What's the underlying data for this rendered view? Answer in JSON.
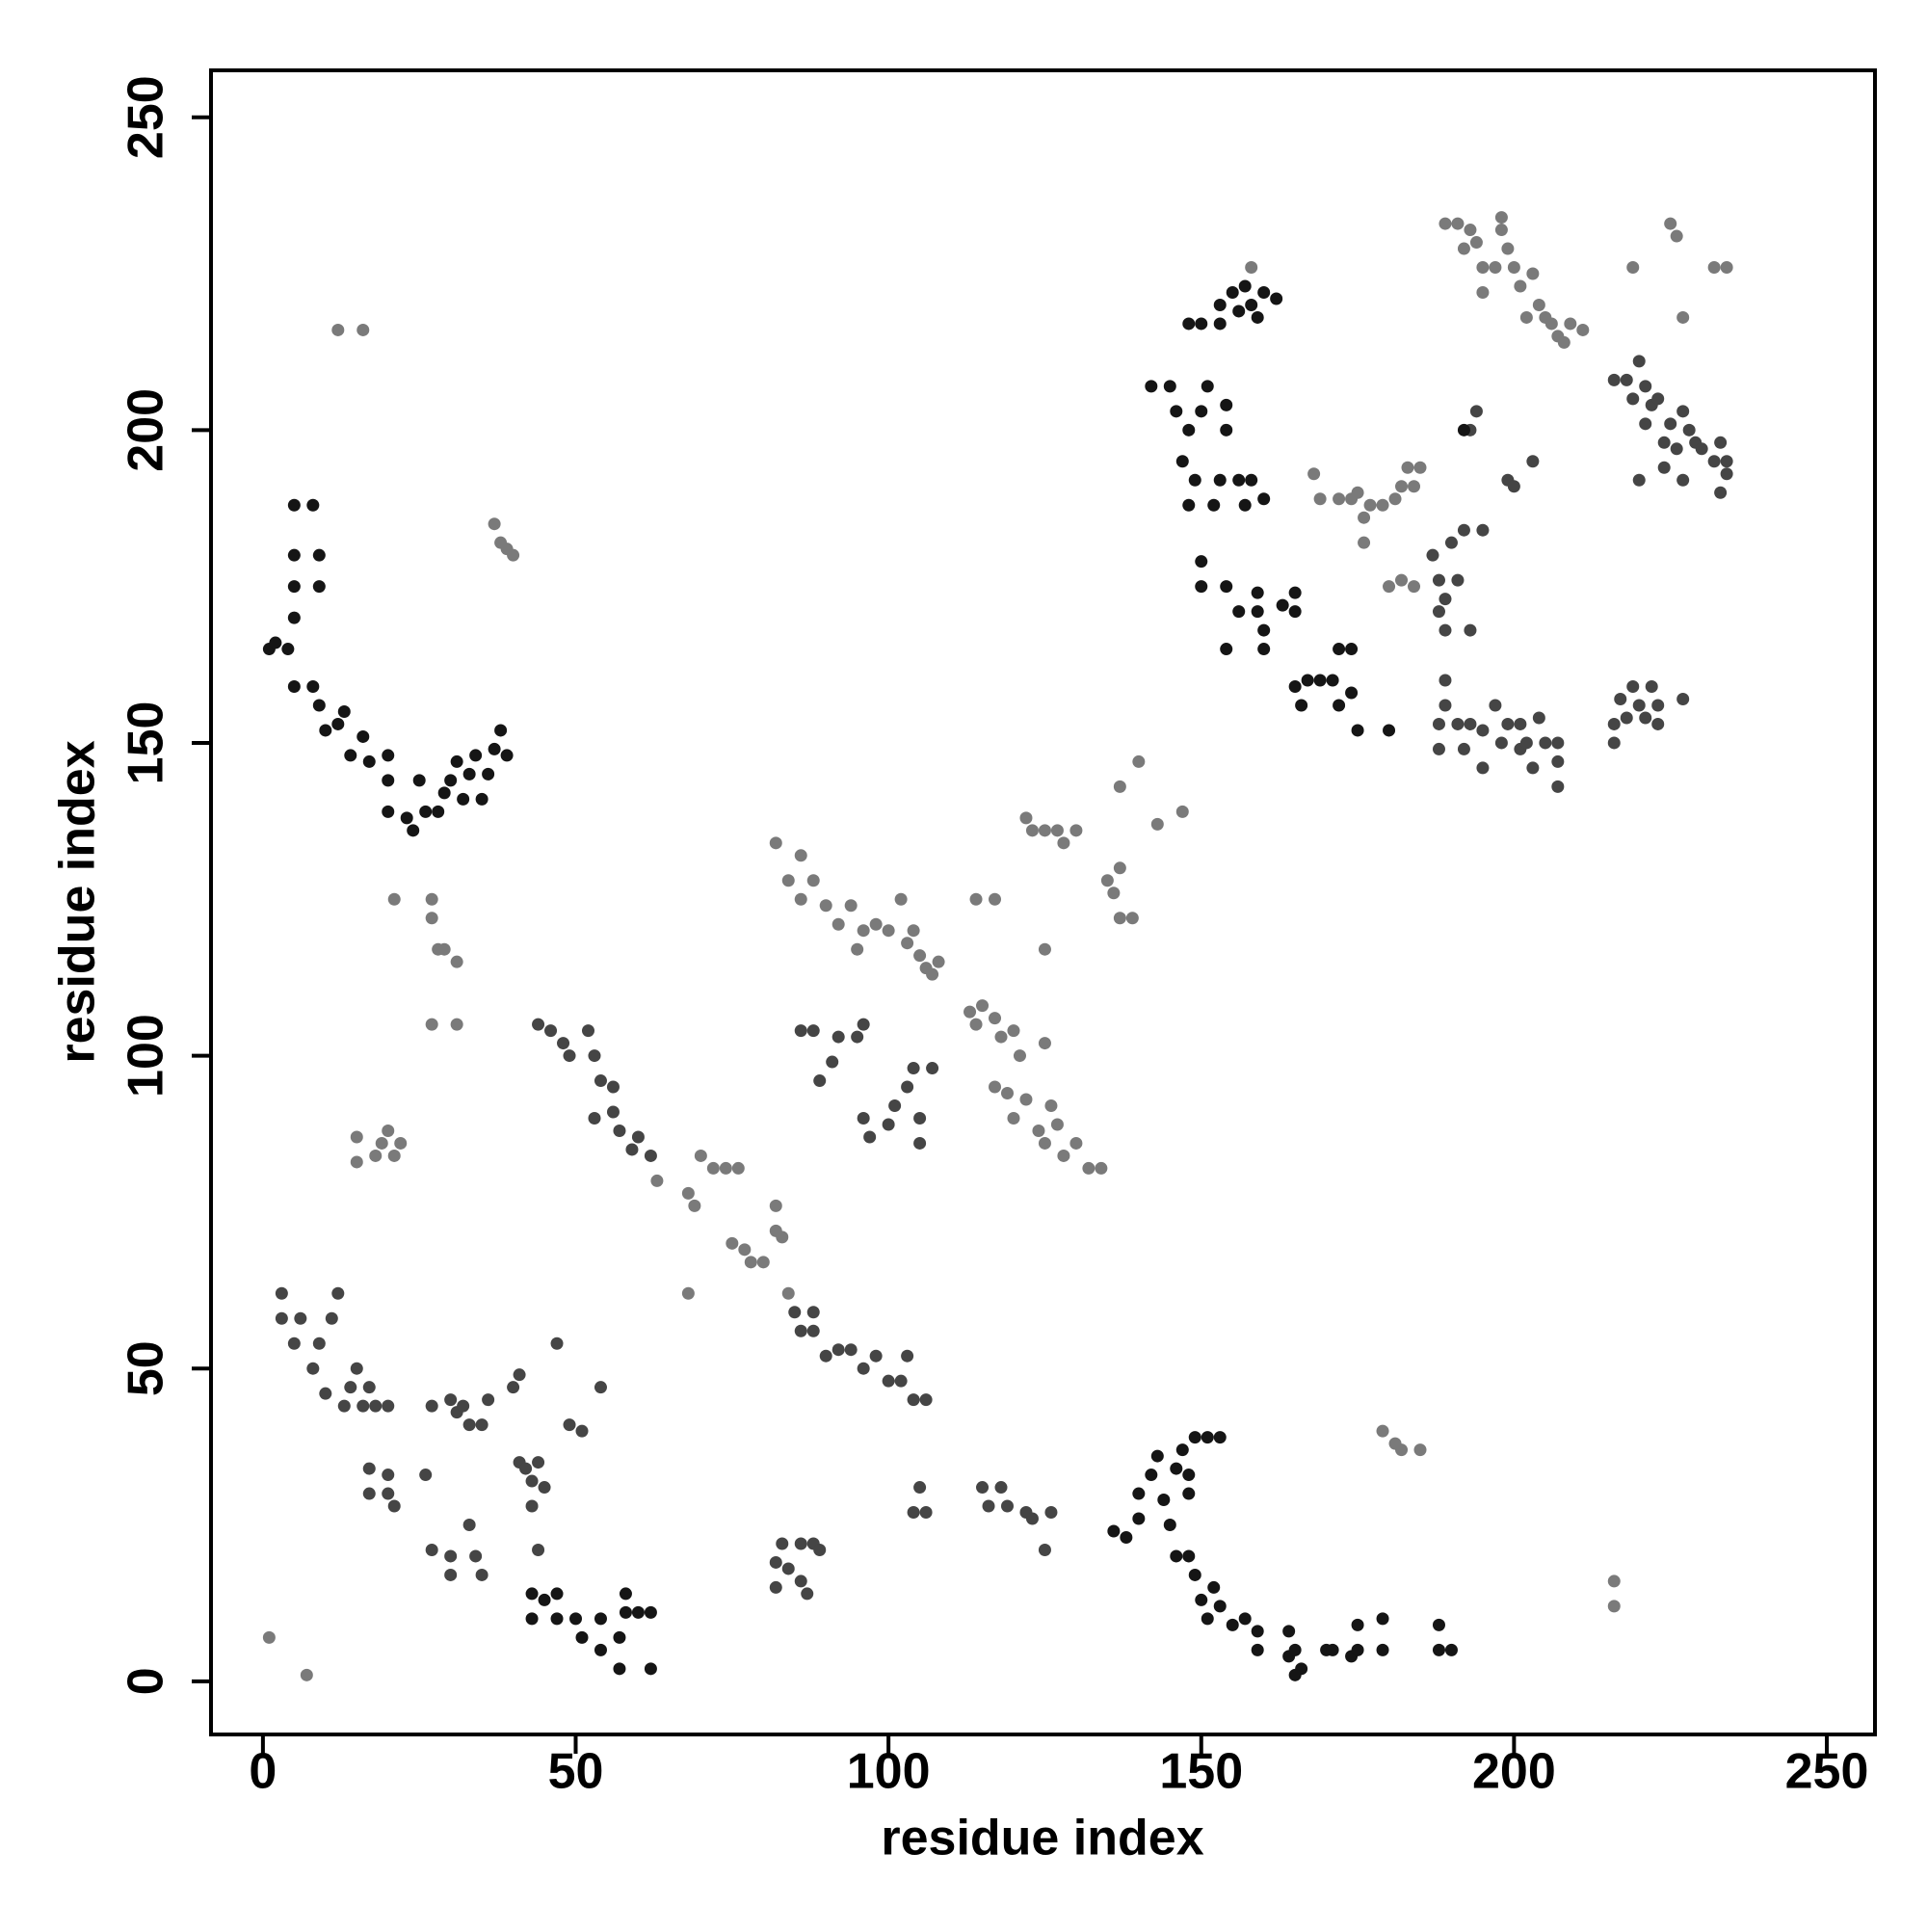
{
  "chart_data": {
    "type": "scatter",
    "xlabel": "residue index",
    "ylabel": "residue index",
    "xlim": [
      -8.3,
      257.7
    ],
    "ylim": [
      -8.5,
      257.5
    ],
    "xticks": [
      0,
      50,
      100,
      150,
      200,
      250
    ],
    "yticks": [
      0,
      50,
      100,
      150,
      200,
      250
    ],
    "series": [
      {
        "color": "#7a7a7a",
        "x": [
          37,
          38,
          39,
          40,
          12,
          16,
          21,
          27,
          27,
          28,
          29,
          31,
          27,
          31,
          15,
          15,
          18,
          19,
          20,
          21,
          22,
          82,
          84,
          86,
          86,
          88,
          90,
          92,
          94,
          96,
          95,
          98,
          100,
          102,
          103,
          104,
          105,
          106,
          107,
          108,
          113,
          114,
          115,
          117,
          118,
          120,
          121,
          117,
          119,
          120,
          122,
          124,
          125,
          126,
          127,
          128,
          130,
          132,
          134,
          125,
          117,
          125,
          122,
          123,
          125,
          127,
          128,
          130,
          135,
          136,
          137,
          137,
          137,
          139,
          140,
          143,
          147,
          114,
          179,
          181,
          182,
          185,
          216,
          216,
          189,
          191,
          192,
          193,
          194,
          195,
          195,
          197,
          198,
          199,
          198,
          200,
          201,
          202,
          203,
          204,
          205,
          206,
          207,
          208,
          209,
          211,
          219,
          225,
          226,
          227,
          232,
          234,
          168,
          169,
          172,
          174,
          175,
          176,
          176,
          177,
          179,
          181,
          182,
          183,
          184,
          185,
          180,
          182,
          184,
          63,
          68,
          68,
          69,
          70,
          72,
          74,
          76,
          75,
          77,
          78,
          80,
          82,
          82,
          83,
          84,
          1,
          7,
          158
        ],
        "values": [
          185,
          182,
          181,
          180,
          216,
          216,
          125,
          125,
          122,
          117,
          117,
          115,
          105,
          105,
          87,
          83,
          84,
          86,
          88,
          84,
          86,
          134,
          128,
          132,
          125,
          128,
          124,
          121,
          124,
          120,
          117,
          121,
          120,
          125,
          118,
          120,
          116,
          114,
          113,
          115,
          107,
          105,
          108,
          106,
          103,
          104,
          100,
          95,
          94,
          90,
          93,
          88,
          86,
          92,
          89,
          84,
          86,
          82,
          82,
          102,
          125,
          117,
          138,
          136,
          136,
          136,
          134,
          136,
          128,
          126,
          122,
          130,
          143,
          122,
          147,
          137,
          139,
          125,
          40,
          38,
          37,
          37,
          16,
          12,
          233,
          233,
          229,
          232,
          230,
          226,
          222,
          226,
          232,
          229,
          234,
          226,
          223,
          218,
          225,
          220,
          218,
          217,
          215,
          214,
          217,
          216,
          226,
          233,
          231,
          218,
          226,
          226,
          193,
          189,
          189,
          189,
          190,
          182,
          186,
          188,
          188,
          189,
          191,
          194,
          191,
          194,
          175,
          176,
          175,
          80,
          62,
          78,
          76,
          84,
          82,
          82,
          82,
          70,
          69,
          67,
          67,
          76,
          72,
          71,
          62,
          7,
          1,
          226
        ]
      },
      {
        "color": "#454545",
        "x": [
          3,
          3,
          5,
          6,
          8,
          9,
          10,
          11,
          12,
          13,
          14,
          15,
          16,
          17,
          18,
          20,
          17,
          17,
          20,
          21,
          20,
          26,
          27,
          30,
          31,
          32,
          33,
          35,
          36,
          41,
          40,
          41,
          42,
          43,
          43,
          44,
          45,
          47,
          49,
          51,
          54,
          27,
          30,
          30,
          33,
          34,
          35,
          44,
          44,
          46,
          48,
          49,
          52,
          53,
          54,
          53,
          56,
          56,
          57,
          59,
          60,
          62,
          85,
          86,
          88,
          88,
          90,
          92,
          94,
          96,
          98,
          100,
          102,
          103,
          104,
          106,
          86,
          88,
          89,
          91,
          92,
          95,
          96,
          96,
          97,
          100,
          101,
          103,
          104,
          105,
          105,
          107,
          82,
          82,
          83,
          84,
          86,
          86,
          87,
          88,
          89,
          105,
          104,
          106,
          115,
          116,
          118,
          119,
          122,
          123,
          125,
          126,
          187,
          188,
          188,
          189,
          189,
          190,
          191,
          192,
          193,
          194,
          195,
          193,
          199,
          200,
          203,
          188,
          188,
          189,
          189,
          191,
          192,
          193,
          195,
          195,
          197,
          198,
          199,
          201,
          201,
          202,
          203,
          204,
          205,
          207,
          207,
          207,
          216,
          216,
          217,
          218,
          219,
          220,
          221,
          222,
          223,
          223,
          227,
          216,
          218,
          219,
          220,
          221,
          221,
          222,
          223,
          224,
          225,
          226,
          227,
          227,
          228,
          229,
          230,
          232,
          233,
          234,
          233,
          234,
          220,
          224
        ],
        "values": [
          62,
          58,
          54,
          58,
          50,
          54,
          46,
          58,
          62,
          44,
          47,
          50,
          44,
          47,
          44,
          44,
          34,
          30,
          30,
          28,
          33,
          33,
          44,
          45,
          43,
          44,
          41,
          41,
          45,
          49,
          47,
          35,
          34,
          32,
          28,
          35,
          31,
          54,
          41,
          40,
          47,
          21,
          20,
          17,
          25,
          20,
          17,
          21,
          105,
          104,
          102,
          100,
          104,
          100,
          96,
          90,
          91,
          95,
          88,
          85,
          87,
          84,
          59,
          56,
          56,
          59,
          52,
          53,
          53,
          50,
          52,
          48,
          48,
          52,
          45,
          45,
          104,
          104,
          96,
          99,
          103,
          103,
          105,
          90,
          87,
          89,
          92,
          95,
          98,
          90,
          86,
          98,
          15,
          19,
          22,
          18,
          22,
          16,
          14,
          22,
          21,
          31,
          27,
          27,
          31,
          28,
          31,
          28,
          27,
          26,
          21,
          27,
          180,
          176,
          171,
          168,
          173,
          182,
          176,
          184,
          200,
          203,
          184,
          168,
          192,
          191,
          195,
          149,
          153,
          156,
          160,
          153,
          149,
          153,
          152,
          146,
          156,
          150,
          153,
          149,
          153,
          150,
          146,
          154,
          150,
          150,
          147,
          143,
          150,
          153,
          157,
          154,
          159,
          156,
          154,
          159,
          156,
          153,
          157,
          208,
          208,
          205,
          211,
          207,
          201,
          204,
          205,
          198,
          201,
          197,
          203,
          192,
          200,
          198,
          197,
          195,
          198,
          193,
          190,
          195,
          192,
          194
        ]
      },
      {
        "color": "#151515",
        "x": [
          1,
          2,
          4,
          5,
          5,
          5,
          5,
          8,
          9,
          9,
          5,
          8,
          9,
          10,
          12,
          13,
          14,
          16,
          17,
          20,
          20,
          20,
          23,
          24,
          25,
          26,
          28,
          29,
          30,
          31,
          32,
          33,
          34,
          35,
          36,
          37,
          38,
          39,
          43,
          43,
          45,
          47,
          47,
          50,
          51,
          54,
          54,
          57,
          57,
          58,
          58,
          60,
          62,
          62,
          136,
          138,
          140,
          140,
          142,
          143,
          144,
          145,
          146,
          146,
          147,
          148,
          148,
          149,
          151,
          153,
          148,
          149,
          150,
          151,
          152,
          153,
          155,
          157,
          159,
          159,
          164,
          164,
          165,
          166,
          165,
          170,
          171,
          174,
          175,
          175,
          179,
          179,
          188,
          188,
          190,
          142,
          145,
          146,
          147,
          148,
          148,
          149,
          150,
          151,
          152,
          153,
          154,
          154,
          156,
          157,
          158,
          160,
          148,
          150,
          153,
          153,
          155,
          156,
          157,
          158,
          159,
          160,
          162,
          150,
          150,
          154,
          154,
          156,
          159,
          159,
          160,
          160,
          163,
          165,
          165,
          165,
          166,
          167,
          169,
          171,
          172,
          172,
          174,
          174,
          175,
          180,
          192
        ],
        "values": [
          165,
          166,
          165,
          170,
          175,
          180,
          188,
          188,
          180,
          175,
          159,
          159,
          156,
          152,
          153,
          155,
          148,
          151,
          147,
          148,
          144,
          139,
          138,
          136,
          144,
          139,
          139,
          142,
          144,
          147,
          141,
          145,
          148,
          141,
          145,
          149,
          152,
          148,
          10,
          14,
          13,
          10,
          14,
          10,
          7,
          10,
          5,
          2,
          7,
          11,
          14,
          11,
          11,
          2,
          24,
          23,
          26,
          30,
          33,
          36,
          29,
          25,
          20,
          34,
          37,
          33,
          30,
          39,
          39,
          39,
          20,
          17,
          13,
          10,
          15,
          12,
          9,
          10,
          5,
          8,
          8,
          4,
          5,
          2,
          1,
          5,
          5,
          4,
          5,
          9,
          10,
          5,
          9,
          5,
          5,
          207,
          207,
          203,
          195,
          200,
          188,
          192,
          203,
          207,
          188,
          192,
          204,
          200,
          192,
          188,
          192,
          189,
          217,
          217,
          220,
          217,
          222,
          219,
          223,
          220,
          218,
          222,
          221,
          179,
          175,
          175,
          165,
          171,
          171,
          174,
          168,
          165,
          172,
          174,
          171,
          159,
          156,
          160,
          160,
          160,
          156,
          165,
          165,
          158,
          152,
          152,
          200
        ]
      }
    ]
  }
}
